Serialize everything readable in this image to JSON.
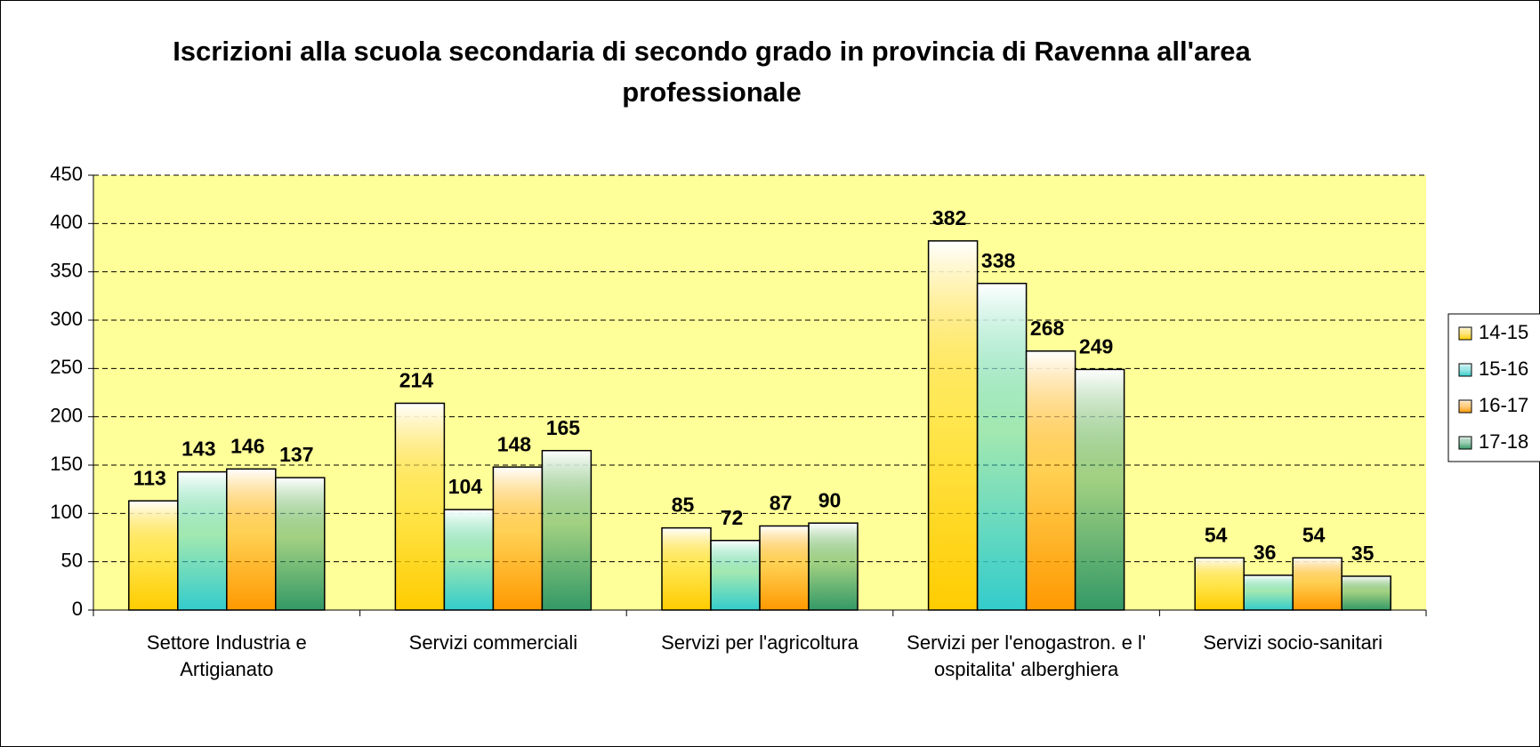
{
  "chart_data": {
    "type": "bar",
    "title": "Iscrizioni alla scuola secondaria di secondo grado in provincia di Ravenna all'area professionale",
    "categories": [
      "Settore Industria e Artigianato",
      "Servizi commerciali",
      "Servizi per l'agricoltura",
      "Servizi per l'enogastron. e l' ospitalita' alberghiera",
      "Servizi socio-sanitari"
    ],
    "series": [
      {
        "name": "14-15",
        "color": "#ffcc00",
        "values": [
          113,
          214,
          85,
          382,
          54
        ]
      },
      {
        "name": "15-16",
        "color": "#33cccc",
        "values": [
          143,
          104,
          72,
          338,
          36
        ]
      },
      {
        "name": "16-17",
        "color": "#ff9900",
        "values": [
          146,
          148,
          87,
          268,
          54
        ]
      },
      {
        "name": "17-18",
        "color": "#339966",
        "values": [
          137,
          165,
          90,
          249,
          35
        ]
      }
    ],
    "ylim": [
      0,
      450
    ],
    "yticks": [
      0,
      50,
      100,
      150,
      200,
      250,
      300,
      350,
      400,
      450
    ],
    "grid": true,
    "legend": "right",
    "plot_background": "#ffff99"
  }
}
